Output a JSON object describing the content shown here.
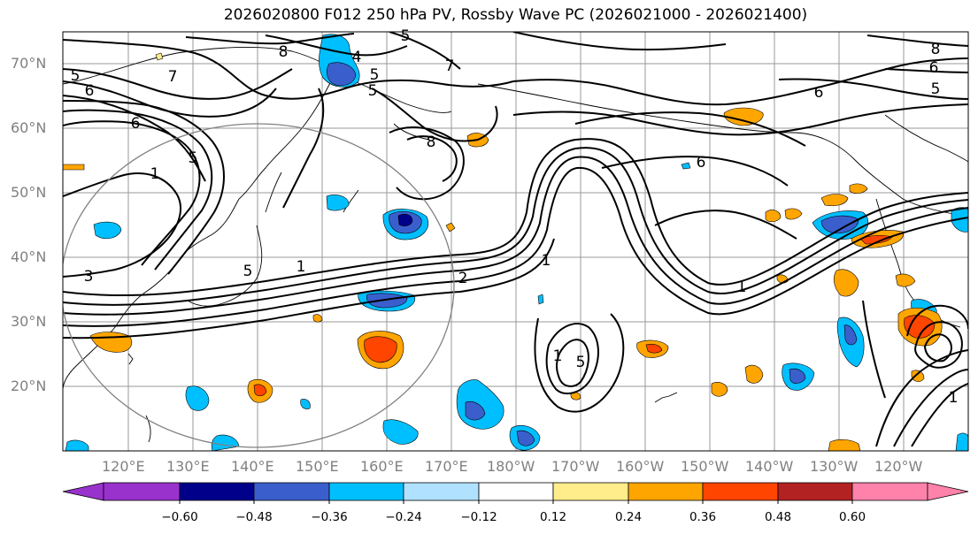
{
  "title": "2026020800 F012 250 hPa PV, Rossby Wave PC (2026021000 - 2026021400)",
  "lat_labels": [
    "70°N",
    "60°N",
    "50°N",
    "40°N",
    "30°N",
    "20°N"
  ],
  "lon_labels": [
    "120°E",
    "130°E",
    "140°E",
    "150°E",
    "160°E",
    "170°E",
    "180°W",
    "170°W",
    "160°W",
    "150°W",
    "140°W",
    "130°W",
    "120°W"
  ],
  "colorbar": {
    "tick_labels": [
      "−0.60",
      "−0.48",
      "−0.36",
      "−0.24",
      "−0.12",
      "0.12",
      "0.24",
      "0.36",
      "0.48",
      "0.60"
    ],
    "colors": [
      "#9932cc",
      "#00008b",
      "#3a5fcd",
      "#00bfff",
      "#b0e2ff",
      "#ffffff",
      "#ffec8b",
      "#ffa500",
      "#ff4500",
      "#b22222",
      "#ff82ab"
    ]
  },
  "contour_labels": [
    "5",
    "6",
    "7",
    "5",
    "1",
    "3",
    "4",
    "5",
    "5",
    "8",
    "5",
    "6",
    "6",
    "8",
    "7",
    "8",
    "5",
    "6",
    "1",
    "2",
    "1",
    "1",
    "1",
    "5",
    "1",
    "6",
    "5"
  ]
}
